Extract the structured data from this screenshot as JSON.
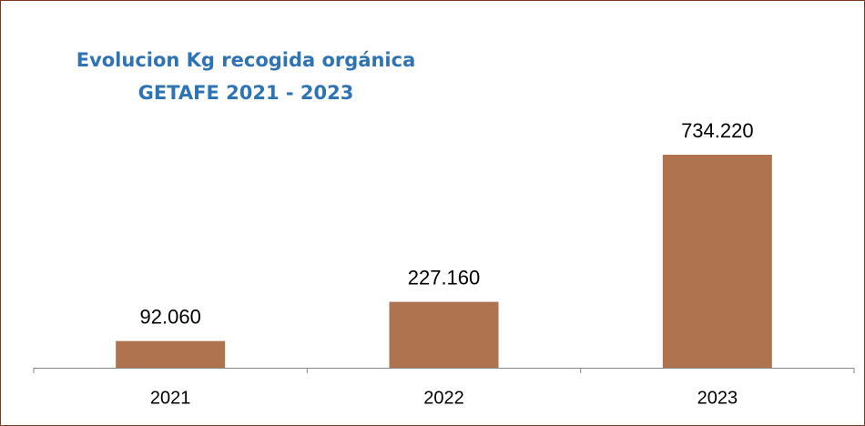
{
  "chart_data": {
    "type": "bar",
    "title": "Evolucion Kg recogida orgánica",
    "subtitle": "GETAFE 2021 - 2023",
    "categories": [
      "2021",
      "2022",
      "2023"
    ],
    "values": [
      92060,
      227160,
      734220
    ],
    "value_labels": [
      "92.060",
      "227.160",
      "734.220"
    ],
    "color": "#b07350"
  }
}
